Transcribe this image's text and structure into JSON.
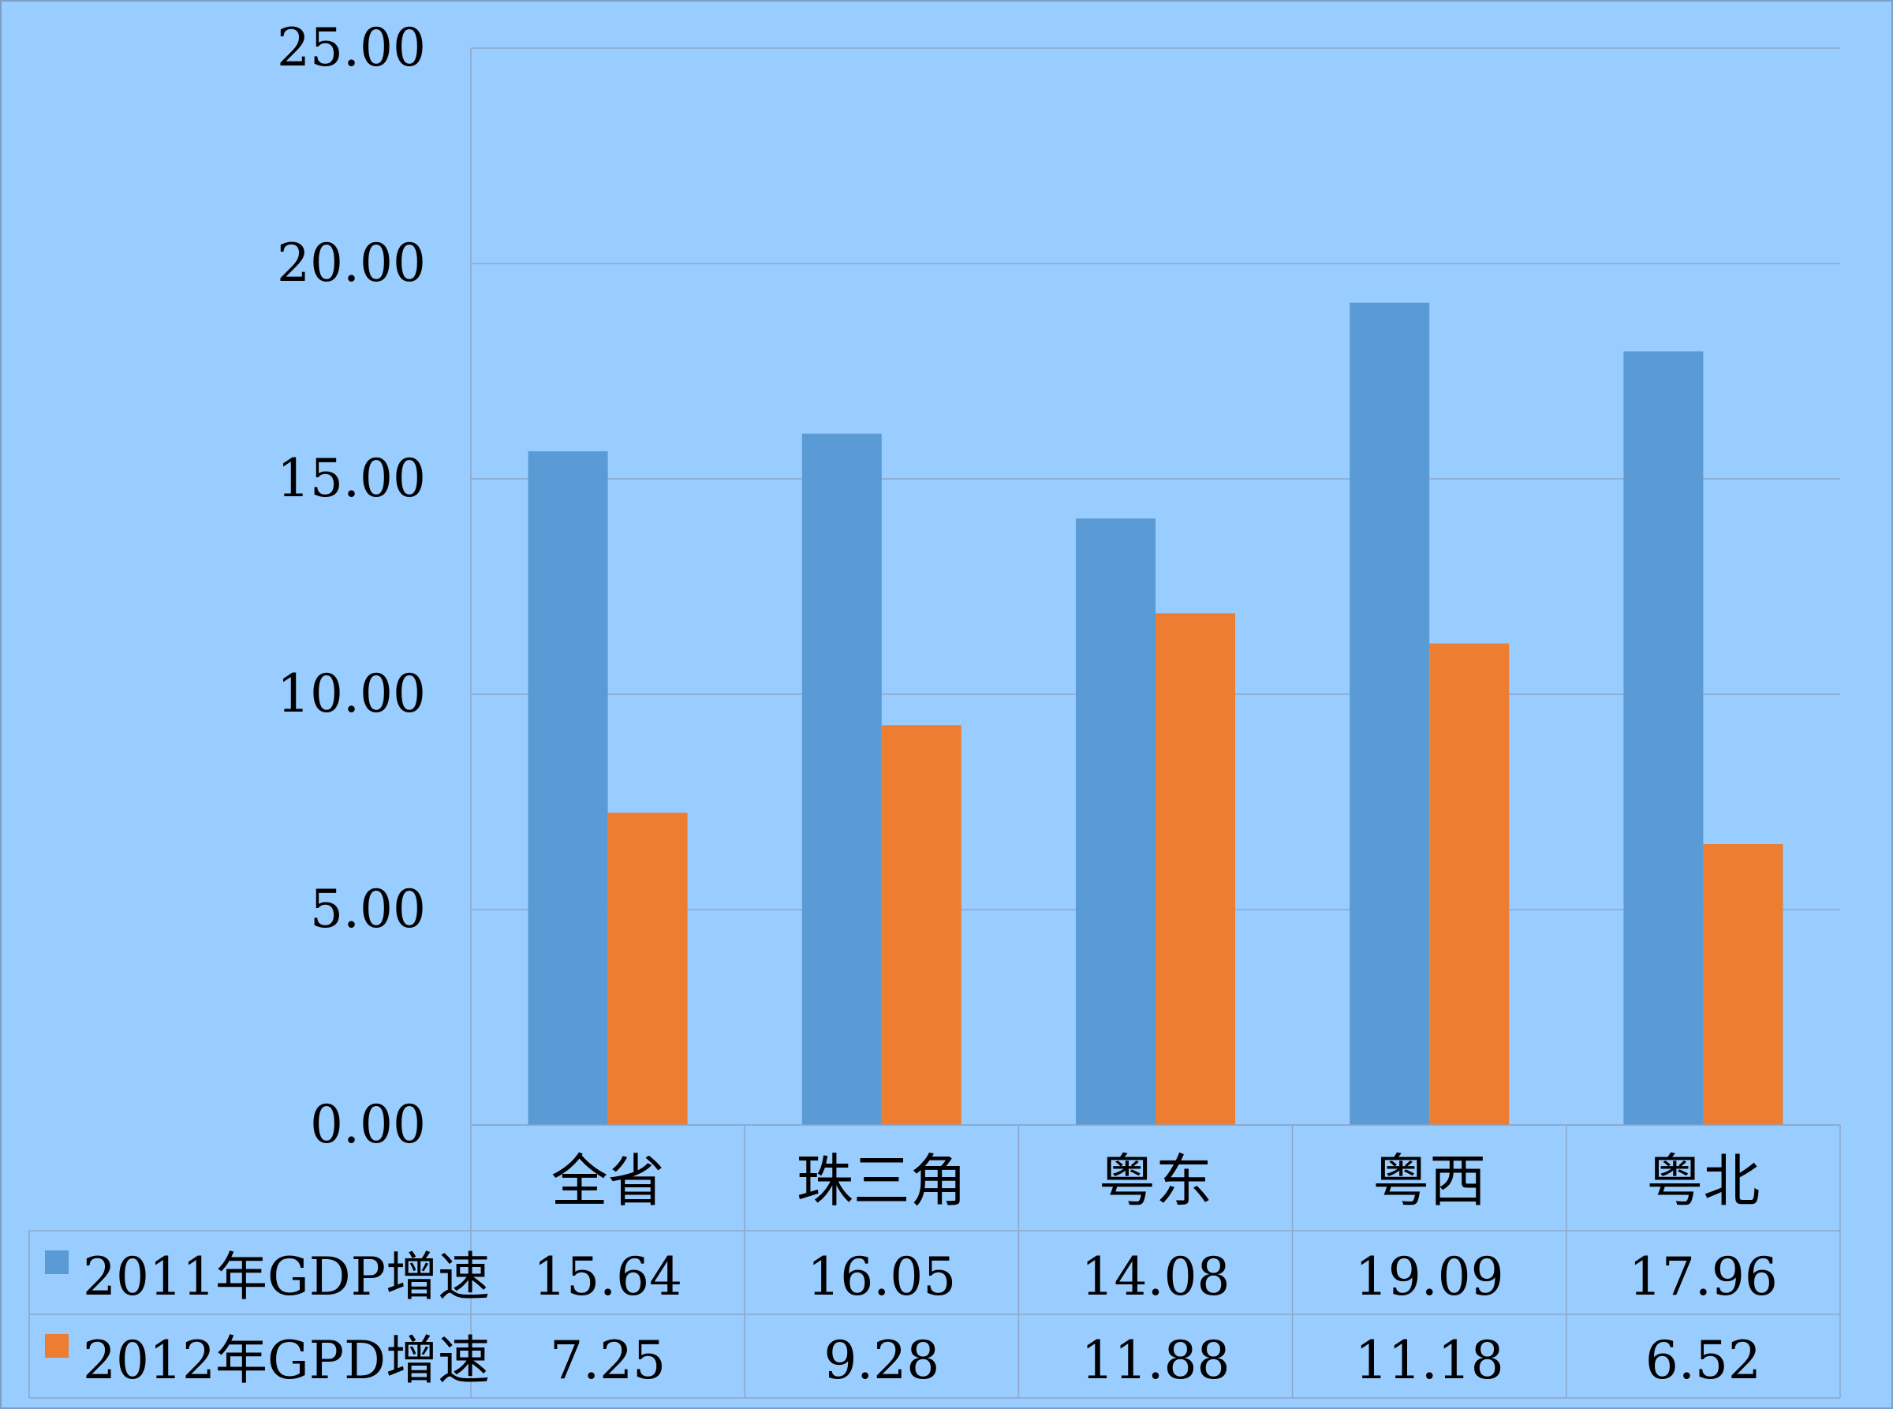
{
  "chart_data": {
    "type": "bar",
    "categories": [
      "全省",
      "珠三角",
      "粤东",
      "粤西",
      "粤北"
    ],
    "series": [
      {
        "name": "2011年GDP增速",
        "color": "#5B9BD5",
        "values": [
          15.64,
          16.05,
          14.08,
          19.09,
          17.96
        ]
      },
      {
        "name": "2012年GPD增速",
        "color": "#ED7D31",
        "values": [
          7.25,
          9.28,
          11.88,
          11.18,
          6.52
        ]
      }
    ],
    "series_display": [
      [
        "15.64",
        "16.05",
        "14.08",
        "19.09",
        "17.96"
      ],
      [
        "7.25",
        "9.28",
        "11.88",
        "11.18",
        "6.52"
      ]
    ],
    "ylim": [
      0,
      25
    ],
    "yticks": [
      "0.00",
      "5.00",
      "10.00",
      "15.00",
      "20.00",
      "25.00"
    ],
    "grid": true,
    "legend": "data-table",
    "background_color": "#99CCFF",
    "gridline_color": "#8EA6C8"
  }
}
